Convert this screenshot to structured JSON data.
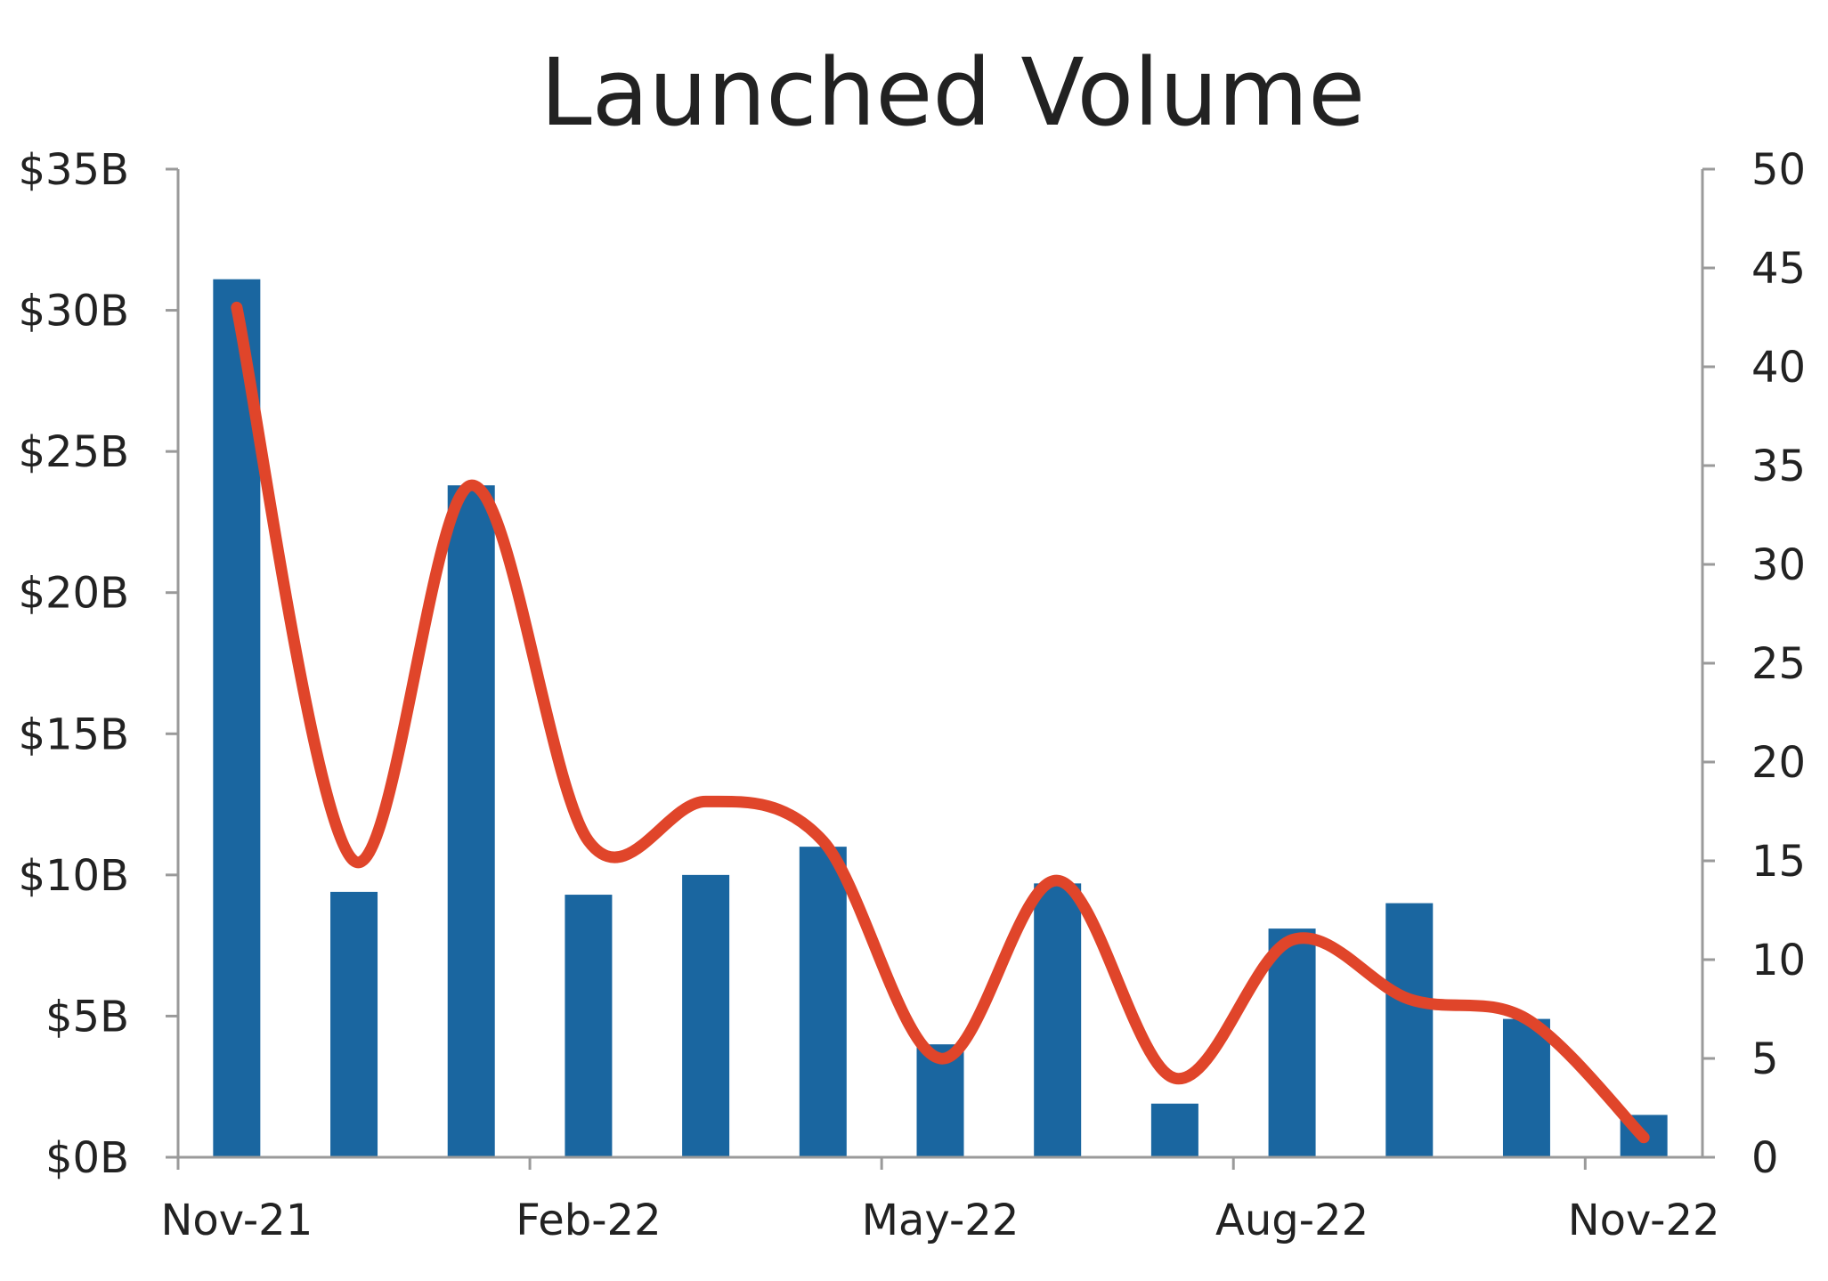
{
  "chart_data": {
    "type": "bar",
    "title": "Launched Volume",
    "categories": [
      "Nov-21",
      "Dec-21",
      "Jan-22",
      "Feb-22",
      "Mar-22",
      "Apr-22",
      "May-22",
      "Jun-22",
      "Jul-22",
      "Aug-22",
      "Sep-22",
      "Oct-22",
      "Nov-22"
    ],
    "x_tick_labels": [
      "Nov-21",
      "Feb-22",
      "May-22",
      "Aug-22",
      "Nov-22"
    ],
    "y_left": {
      "ticks": [
        "$0B",
        "$5B",
        "$10B",
        "$15B",
        "$20B",
        "$25B",
        "$30B",
        "$35B"
      ],
      "lim": [
        0,
        35
      ]
    },
    "y_right": {
      "ticks": [
        "0",
        "5",
        "10",
        "15",
        "20",
        "25",
        "30",
        "35",
        "40",
        "45",
        "50"
      ],
      "lim": [
        0,
        50
      ]
    },
    "series": [
      {
        "type": "bar",
        "axis": "left",
        "color": "#1a66a0",
        "values": [
          31.1,
          9.4,
          23.8,
          9.3,
          10.0,
          11.0,
          4.0,
          9.7,
          1.9,
          8.1,
          9.0,
          4.9,
          1.5
        ]
      },
      {
        "type": "line",
        "axis": "right",
        "color": "#e0452a",
        "smooth": true,
        "values": [
          43,
          15,
          34,
          16,
          18,
          16,
          5,
          14,
          4,
          11,
          8,
          7,
          1
        ]
      }
    ],
    "grid": false,
    "legend": "none"
  }
}
